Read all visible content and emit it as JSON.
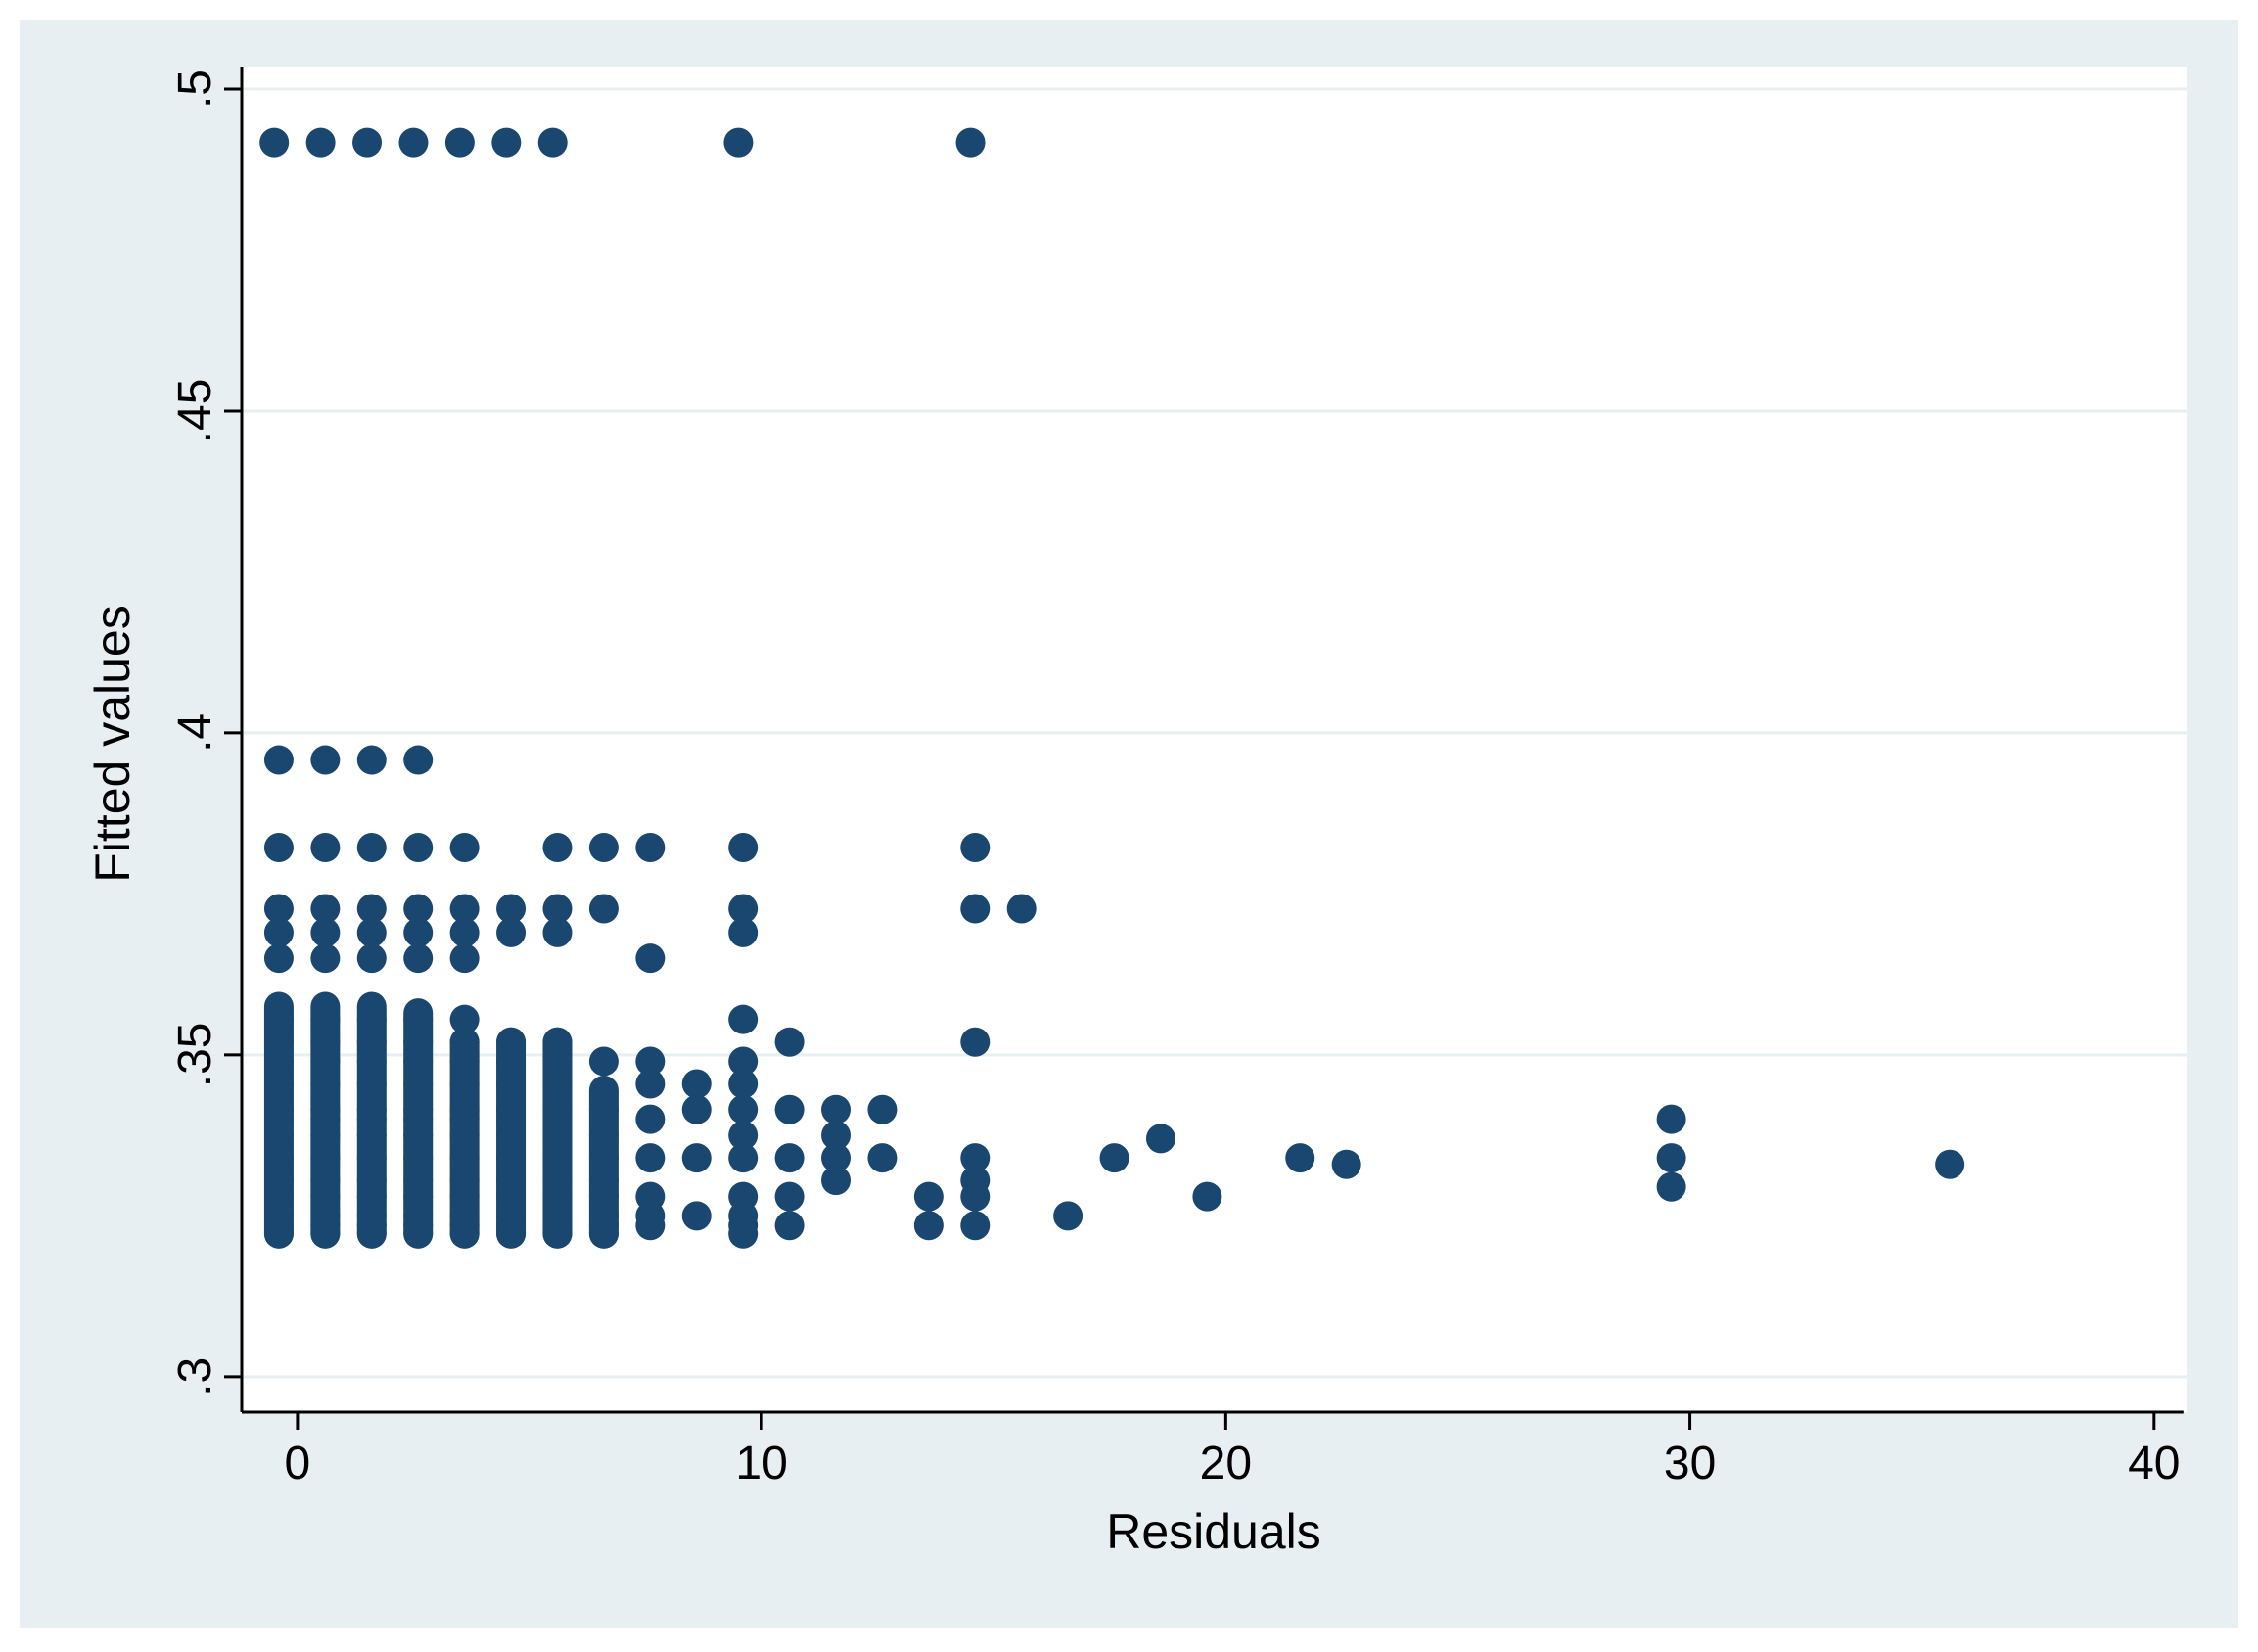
{
  "colors": {
    "outer_background": "#ffffff",
    "graph_region": "#e8eff2",
    "plot_region": "#ffffff",
    "gridline": "#e8eff2",
    "marker": "#1a476f",
    "axis": "#000000"
  },
  "chart_data": {
    "type": "scatter",
    "xlabel": "Residuals",
    "ylabel": "Fitted values",
    "xlim": [
      -1.2,
      40.7
    ],
    "ylim": [
      0.2945,
      0.5035
    ],
    "xticks": [
      0,
      10,
      20,
      30,
      40
    ],
    "xtick_labels": [
      "0",
      "10",
      "20",
      "30",
      "40"
    ],
    "yticks": [
      0.3,
      0.35,
      0.4,
      0.45,
      0.5
    ],
    "ytick_labels": [
      ".3",
      ".35",
      ".4",
      ".45",
      ".5"
    ],
    "grid": "horizontal",
    "legend": "none",
    "marker": "filled-circle",
    "points": [
      [
        -0.5,
        0.4917
      ],
      [
        0.5,
        0.4917
      ],
      [
        1.5,
        0.4917
      ],
      [
        2.5,
        0.4917
      ],
      [
        3.5,
        0.4917
      ],
      [
        4.5,
        0.4917
      ],
      [
        5.5,
        0.4917
      ],
      [
        9.5,
        0.4917
      ],
      [
        14.5,
        0.4917
      ],
      [
        -0.4,
        0.3958
      ],
      [
        0.6,
        0.3958
      ],
      [
        1.6,
        0.3958
      ],
      [
        2.6,
        0.3958
      ],
      [
        -0.4,
        0.3822
      ],
      [
        0.6,
        0.3822
      ],
      [
        1.6,
        0.3822
      ],
      [
        2.6,
        0.3822
      ],
      [
        3.6,
        0.3822
      ],
      [
        5.6,
        0.3822
      ],
      [
        6.6,
        0.3822
      ],
      [
        7.6,
        0.3822
      ],
      [
        9.6,
        0.3822
      ],
      [
        14.6,
        0.3822
      ],
      [
        -0.4,
        0.3727
      ],
      [
        0.6,
        0.3727
      ],
      [
        1.6,
        0.3727
      ],
      [
        2.6,
        0.3727
      ],
      [
        3.6,
        0.3727
      ],
      [
        4.6,
        0.3727
      ],
      [
        5.6,
        0.3727
      ],
      [
        6.6,
        0.3727
      ],
      [
        9.6,
        0.3727
      ],
      [
        14.6,
        0.3727
      ],
      [
        15.6,
        0.3727
      ],
      [
        -0.4,
        0.369
      ],
      [
        0.6,
        0.369
      ],
      [
        1.6,
        0.369
      ],
      [
        2.6,
        0.369
      ],
      [
        3.6,
        0.369
      ],
      [
        4.6,
        0.369
      ],
      [
        5.6,
        0.369
      ],
      [
        9.6,
        0.369
      ],
      [
        -0.4,
        0.365
      ],
      [
        0.6,
        0.365
      ],
      [
        1.6,
        0.365
      ],
      [
        2.6,
        0.365
      ],
      [
        3.6,
        0.365
      ],
      [
        7.6,
        0.365
      ],
      [
        -0.4,
        0.3555
      ],
      [
        0.6,
        0.3555
      ],
      [
        1.6,
        0.3555
      ],
      [
        2.6,
        0.3555
      ],
      [
        3.6,
        0.3555
      ],
      [
        9.6,
        0.3555
      ],
      [
        -0.4,
        0.352
      ],
      [
        0.6,
        0.352
      ],
      [
        1.6,
        0.352
      ],
      [
        2.6,
        0.352
      ],
      [
        3.6,
        0.352
      ],
      [
        4.6,
        0.352
      ],
      [
        5.6,
        0.352
      ],
      [
        10.6,
        0.352
      ],
      [
        14.6,
        0.352
      ],
      [
        -0.4,
        0.349
      ],
      [
        0.6,
        0.349
      ],
      [
        1.6,
        0.349
      ],
      [
        2.6,
        0.349
      ],
      [
        3.6,
        0.349
      ],
      [
        4.6,
        0.349
      ],
      [
        5.6,
        0.349
      ],
      [
        6.6,
        0.349
      ],
      [
        7.6,
        0.349
      ],
      [
        9.6,
        0.349
      ],
      [
        -0.4,
        0.3455
      ],
      [
        0.6,
        0.3455
      ],
      [
        1.6,
        0.3455
      ],
      [
        2.6,
        0.3455
      ],
      [
        3.6,
        0.3455
      ],
      [
        4.6,
        0.3455
      ],
      [
        5.6,
        0.3455
      ],
      [
        7.6,
        0.3455
      ],
      [
        8.6,
        0.3455
      ],
      [
        9.6,
        0.3455
      ],
      [
        -0.4,
        0.3415
      ],
      [
        0.6,
        0.3415
      ],
      [
        1.6,
        0.3415
      ],
      [
        2.6,
        0.3415
      ],
      [
        3.6,
        0.3415
      ],
      [
        4.6,
        0.3415
      ],
      [
        5.6,
        0.3415
      ],
      [
        6.6,
        0.3415
      ],
      [
        8.6,
        0.3415
      ],
      [
        9.6,
        0.3415
      ],
      [
        10.6,
        0.3415
      ],
      [
        11.6,
        0.3415
      ],
      [
        12.6,
        0.3415
      ],
      [
        -0.4,
        0.34
      ],
      [
        0.6,
        0.34
      ],
      [
        1.6,
        0.34
      ],
      [
        2.6,
        0.34
      ],
      [
        3.6,
        0.34
      ],
      [
        4.6,
        0.34
      ],
      [
        5.6,
        0.34
      ],
      [
        7.6,
        0.34
      ],
      [
        29.6,
        0.34
      ],
      [
        -0.4,
        0.3375
      ],
      [
        0.6,
        0.3375
      ],
      [
        1.6,
        0.3375
      ],
      [
        2.6,
        0.3375
      ],
      [
        3.6,
        0.3375
      ],
      [
        4.6,
        0.3375
      ],
      [
        5.6,
        0.3375
      ],
      [
        6.6,
        0.3375
      ],
      [
        9.6,
        0.3375
      ],
      [
        11.6,
        0.3375
      ],
      [
        18.6,
        0.337
      ],
      [
        -0.4,
        0.334
      ],
      [
        0.6,
        0.334
      ],
      [
        1.6,
        0.334
      ],
      [
        2.6,
        0.334
      ],
      [
        3.6,
        0.334
      ],
      [
        4.6,
        0.334
      ],
      [
        5.6,
        0.334
      ],
      [
        6.6,
        0.334
      ],
      [
        7.6,
        0.334
      ],
      [
        8.6,
        0.334
      ],
      [
        9.6,
        0.334
      ],
      [
        10.6,
        0.334
      ],
      [
        11.6,
        0.334
      ],
      [
        12.6,
        0.334
      ],
      [
        14.6,
        0.334
      ],
      [
        17.6,
        0.334
      ],
      [
        21.6,
        0.334
      ],
      [
        29.6,
        0.334
      ],
      [
        22.6,
        0.333
      ],
      [
        35.6,
        0.333
      ],
      [
        -0.4,
        0.3305
      ],
      [
        0.6,
        0.3305
      ],
      [
        1.6,
        0.3305
      ],
      [
        2.6,
        0.3305
      ],
      [
        3.6,
        0.3305
      ],
      [
        4.6,
        0.3305
      ],
      [
        5.6,
        0.3305
      ],
      [
        6.6,
        0.3305
      ],
      [
        11.6,
        0.3305
      ],
      [
        14.6,
        0.3305
      ],
      [
        29.6,
        0.3295
      ],
      [
        -0.4,
        0.328
      ],
      [
        0.6,
        0.328
      ],
      [
        1.6,
        0.328
      ],
      [
        2.6,
        0.328
      ],
      [
        3.6,
        0.328
      ],
      [
        4.6,
        0.328
      ],
      [
        5.6,
        0.328
      ],
      [
        6.6,
        0.328
      ],
      [
        7.6,
        0.328
      ],
      [
        9.6,
        0.328
      ],
      [
        10.6,
        0.328
      ],
      [
        13.6,
        0.328
      ],
      [
        14.6,
        0.328
      ],
      [
        19.6,
        0.328
      ],
      [
        -0.4,
        0.325
      ],
      [
        0.6,
        0.325
      ],
      [
        1.6,
        0.325
      ],
      [
        2.6,
        0.325
      ],
      [
        3.6,
        0.325
      ],
      [
        4.6,
        0.325
      ],
      [
        5.6,
        0.325
      ],
      [
        6.6,
        0.325
      ],
      [
        7.6,
        0.325
      ],
      [
        8.6,
        0.325
      ],
      [
        9.6,
        0.325
      ],
      [
        16.6,
        0.325
      ],
      [
        -0.4,
        0.3235
      ],
      [
        0.6,
        0.3235
      ],
      [
        1.6,
        0.3235
      ],
      [
        2.6,
        0.3235
      ],
      [
        3.6,
        0.3235
      ],
      [
        4.6,
        0.3235
      ],
      [
        5.6,
        0.3235
      ],
      [
        6.6,
        0.3235
      ],
      [
        7.6,
        0.3235
      ],
      [
        9.6,
        0.3235
      ],
      [
        10.6,
        0.3235
      ],
      [
        13.6,
        0.3235
      ],
      [
        14.6,
        0.3235
      ],
      [
        -0.4,
        0.3222
      ],
      [
        0.6,
        0.3222
      ],
      [
        1.6,
        0.3222
      ],
      [
        2.6,
        0.3222
      ],
      [
        3.6,
        0.3222
      ],
      [
        4.6,
        0.3222
      ],
      [
        5.6,
        0.3222
      ],
      [
        6.6,
        0.3222
      ],
      [
        9.6,
        0.3222
      ]
    ],
    "dense_columns": [
      {
        "x": -0.4,
        "y_range": [
          0.3222,
          0.3575
        ]
      },
      {
        "x": 0.6,
        "y_range": [
          0.3222,
          0.3575
        ]
      },
      {
        "x": 1.6,
        "y_range": [
          0.3222,
          0.3575
        ]
      },
      {
        "x": 2.6,
        "y_range": [
          0.3222,
          0.3565
        ]
      },
      {
        "x": 3.6,
        "y_range": [
          0.3222,
          0.352
        ]
      },
      {
        "x": 4.6,
        "y_range": [
          0.3222,
          0.352
        ]
      },
      {
        "x": 5.6,
        "y_range": [
          0.3222,
          0.352
        ]
      },
      {
        "x": 6.6,
        "y_range": [
          0.3222,
          0.3445
        ]
      }
    ]
  }
}
